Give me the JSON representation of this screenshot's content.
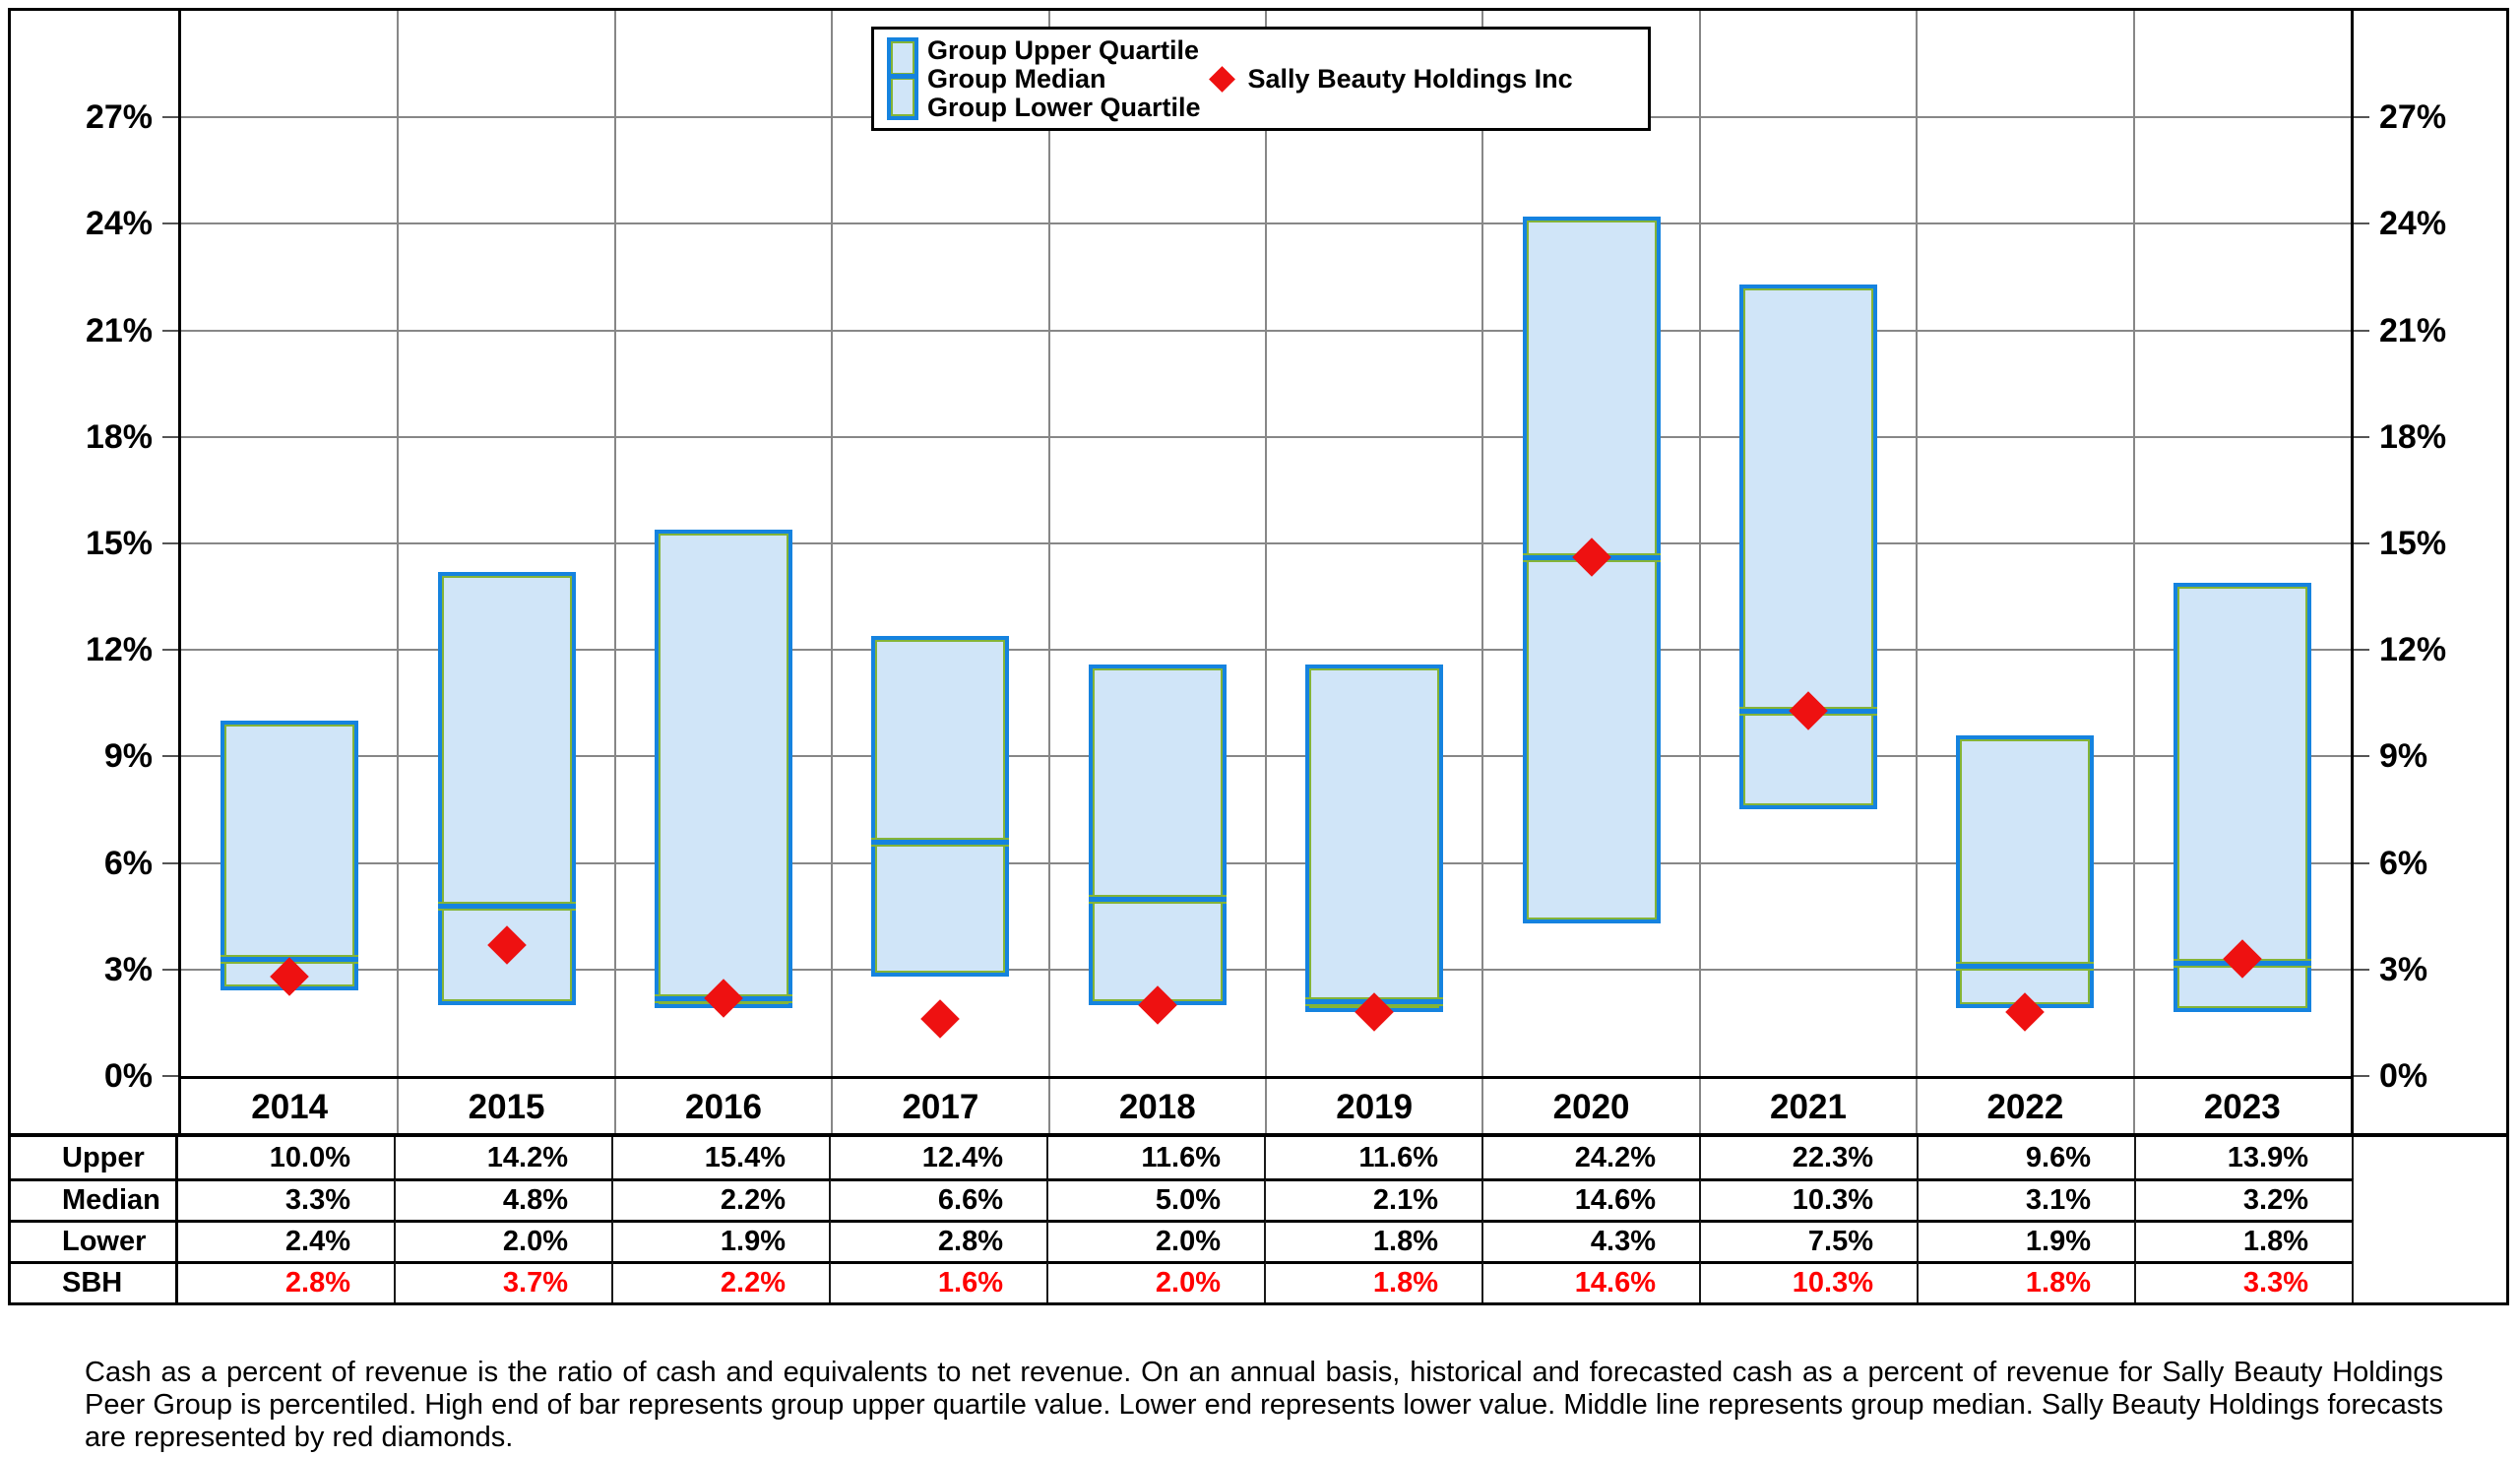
{
  "chart_data": {
    "type": "bar",
    "subtype": "floating-quartile-range-bars-with-scatter-markers",
    "categories": [
      "2014",
      "2015",
      "2016",
      "2017",
      "2018",
      "2019",
      "2020",
      "2021",
      "2022",
      "2023"
    ],
    "series": [
      {
        "name": "Group Upper Quartile",
        "role": "bar-top",
        "values": [
          10.0,
          14.2,
          15.4,
          12.4,
          11.6,
          11.6,
          24.2,
          22.3,
          9.6,
          13.9
        ]
      },
      {
        "name": "Group Median",
        "role": "bar-middle",
        "values": [
          3.3,
          4.8,
          2.2,
          6.6,
          5.0,
          2.1,
          14.6,
          10.3,
          3.1,
          3.2
        ]
      },
      {
        "name": "Group Lower Quartile",
        "role": "bar-bottom",
        "values": [
          2.4,
          2.0,
          1.9,
          2.8,
          2.0,
          1.8,
          4.3,
          7.5,
          1.9,
          1.8
        ]
      },
      {
        "name": "Sally Beauty Holdings Inc",
        "role": "scatter",
        "marker": "diamond",
        "values": [
          2.8,
          3.7,
          2.2,
          1.6,
          2.0,
          1.8,
          14.6,
          10.3,
          1.8,
          3.3
        ]
      }
    ],
    "ylim": [
      0,
      30
    ],
    "yticks": [
      0,
      3,
      6,
      9,
      12,
      15,
      18,
      21,
      24,
      27
    ],
    "ytick_suffix": "%",
    "grid": true,
    "dual_y_axis_labels": true,
    "legend_position": "top-center"
  },
  "legend": {
    "upper": "Group Upper Quartile",
    "median": "Group Median",
    "lower": "Group Lower Quartile",
    "sbh": "Sally Beauty Holdings Inc"
  },
  "table": {
    "row_headers": [
      "Upper",
      "Median",
      "Lower",
      "SBH"
    ],
    "value_suffix": "%"
  },
  "footnote": "Cash as a percent of revenue is the ratio of cash and equivalents to net revenue.  On an annual basis, historical and forecasted cash as a percent of revenue for Sally Beauty Holdings Peer Group is percentiled.  High end of bar represents group upper quartile value.  Lower end represents lower value.  Middle line represents group median.  Sally Beauty Holdings forecasts are represented by red diamonds.",
  "colors": {
    "bar_fill": "#d0e5f8",
    "bar_border": "#1583df",
    "bar_inner_stroke": "#84b437",
    "marker_red": "#ee1111",
    "sbh_text_red": "#ff0000",
    "gridline": "#878787",
    "axis": "#000000"
  }
}
